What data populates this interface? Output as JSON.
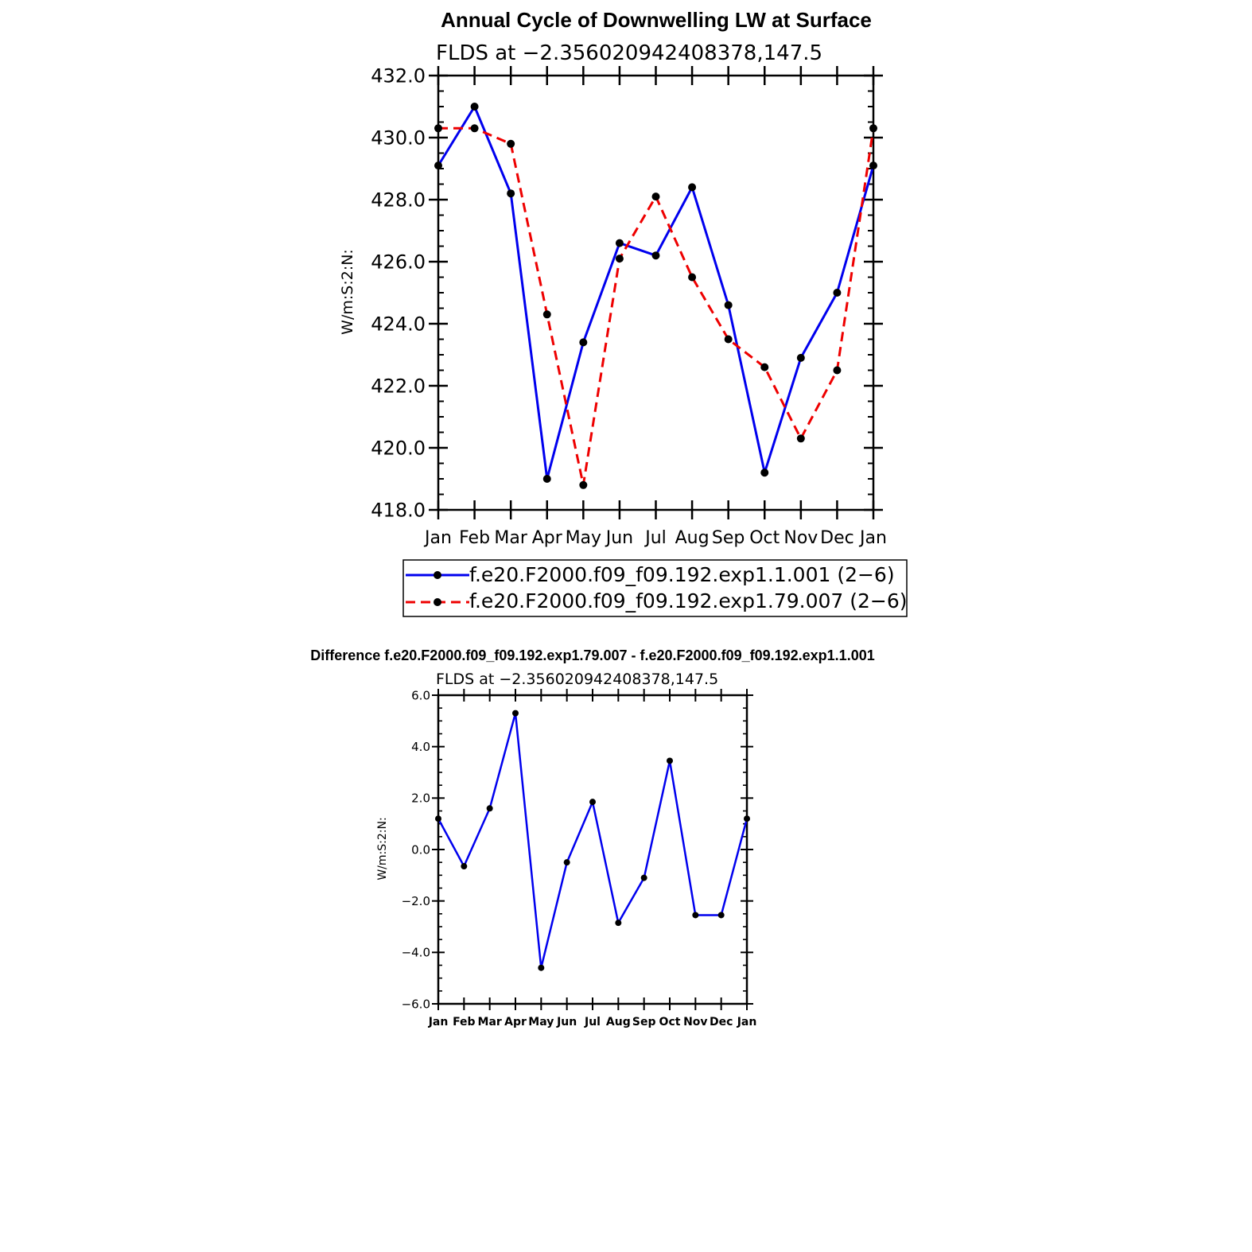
{
  "colors": {
    "series1": "#0000ee",
    "series2": "#ee0000",
    "marker": "#000000",
    "axis": "#000000"
  },
  "chart_data": [
    {
      "type": "line",
      "title": "Annual Cycle of Downwelling LW at Surface",
      "subtitle": "FLDS at −2.356020942408378,147.5",
      "ylabel": "W/m:S:2:N:",
      "xlabel": "",
      "ylim": [
        418.0,
        432.0
      ],
      "yticks": [
        "418.0",
        "420.0",
        "422.0",
        "424.0",
        "426.0",
        "428.0",
        "430.0",
        "432.0"
      ],
      "categories": [
        "Jan",
        "Feb",
        "Mar",
        "Apr",
        "May",
        "Jun",
        "Jul",
        "Aug",
        "Sep",
        "Oct",
        "Nov",
        "Dec",
        "Jan"
      ],
      "legend": "bottom",
      "grid": false,
      "series": [
        {
          "name": "f.e20.F2000.f09_f09.192.exp1.1.001 (2−6)",
          "style": "solid",
          "values": [
            429.1,
            431.0,
            428.2,
            419.0,
            423.4,
            426.6,
            426.2,
            428.4,
            424.6,
            419.2,
            422.9,
            425.0,
            429.1
          ]
        },
        {
          "name": "f.e20.F2000.f09_f09.192.exp1.79.007 (2−6)",
          "style": "dashed",
          "values": [
            430.3,
            430.3,
            429.8,
            424.3,
            418.8,
            426.1,
            428.1,
            425.5,
            423.5,
            422.6,
            420.3,
            422.5,
            430.3
          ]
        }
      ]
    },
    {
      "type": "line",
      "title": "Difference f.e20.F2000.f09_f09.192.exp1.79.007 - f.e20.F2000.f09_f09.192.exp1.1.001",
      "subtitle": "FLDS at −2.356020942408378,147.5",
      "ylabel": "W/m:S:2:N:",
      "xlabel": "",
      "ylim": [
        -6.0,
        6.0
      ],
      "yticks": [
        "−6.0",
        "−4.0",
        "−2.0",
        "0.0",
        "2.0",
        "4.0",
        "6.0"
      ],
      "categories": [
        "Jan",
        "Feb",
        "Mar",
        "Apr",
        "May",
        "Jun",
        "Jul",
        "Aug",
        "Sep",
        "Oct",
        "Nov",
        "Dec",
        "Jan"
      ],
      "grid": false,
      "series": [
        {
          "values": [
            1.2,
            -0.65,
            1.6,
            5.3,
            -4.6,
            -0.5,
            1.85,
            -2.85,
            -1.1,
            3.45,
            -2.55,
            -2.55,
            1.2
          ]
        }
      ]
    }
  ]
}
